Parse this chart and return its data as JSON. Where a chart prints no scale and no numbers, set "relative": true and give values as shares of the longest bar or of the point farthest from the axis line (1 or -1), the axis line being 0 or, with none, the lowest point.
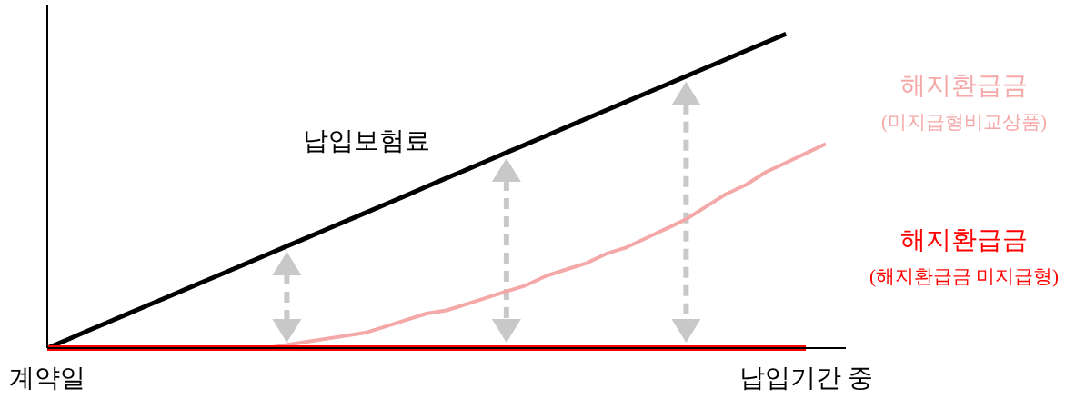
{
  "chart_data": {
    "type": "line",
    "relative": true,
    "categories": [
      "계약일",
      null,
      null,
      null,
      null,
      null,
      null,
      null,
      null,
      null,
      null,
      null,
      null,
      null,
      null,
      null,
      null,
      null,
      null,
      null,
      null,
      null,
      null,
      null,
      null,
      null,
      null,
      null,
      null,
      null,
      null,
      null,
      null,
      null,
      null,
      null,
      null,
      null,
      "납입기간 중",
      null,
      null
    ],
    "series": [
      {
        "name": "납입보험료",
        "color": "#000000",
        "values": [
          0,
          0.027,
          0.054,
          0.081,
          0.108,
          0.135,
          0.162,
          0.189,
          0.216,
          0.243,
          0.27,
          0.297,
          0.324,
          0.351,
          0.378,
          0.405,
          0.432,
          0.459,
          0.486,
          0.514,
          0.541,
          0.568,
          0.595,
          0.622,
          0.649,
          0.676,
          0.703,
          0.73,
          0.757,
          0.784,
          0.811,
          0.838,
          0.865,
          0.892,
          0.919,
          0.946,
          0.973,
          1,
          null,
          null,
          null
        ]
      },
      {
        "name": "해지환급금\n(미지급형비교상품)",
        "color": "#f4a8a8",
        "values": [
          null,
          null,
          null,
          null,
          null,
          null,
          null,
          null,
          null,
          null,
          0,
          0,
          0.01,
          0.02,
          0.03,
          0.04,
          0.05,
          0.07,
          0.09,
          0.11,
          0.12,
          0.14,
          0.16,
          0.18,
          0.2,
          0.23,
          0.25,
          0.27,
          0.3,
          0.32,
          0.35,
          0.38,
          0.41,
          0.45,
          0.49,
          0.52,
          0.56,
          0.59,
          0.62,
          0.65,
          null
        ]
      },
      {
        "name": "해지환급금\n(해지환급금 미지급형)",
        "color": "#ff0000",
        "values": [
          0,
          0,
          0,
          0,
          0,
          0,
          0,
          0,
          0,
          0,
          0,
          0,
          0,
          0,
          0,
          0,
          0,
          0,
          0,
          0,
          0,
          0,
          0,
          0,
          0,
          0,
          0,
          0,
          0,
          0,
          0,
          0,
          0,
          0,
          0,
          0,
          0,
          0,
          0,
          null,
          null
        ]
      }
    ]
  }
}
